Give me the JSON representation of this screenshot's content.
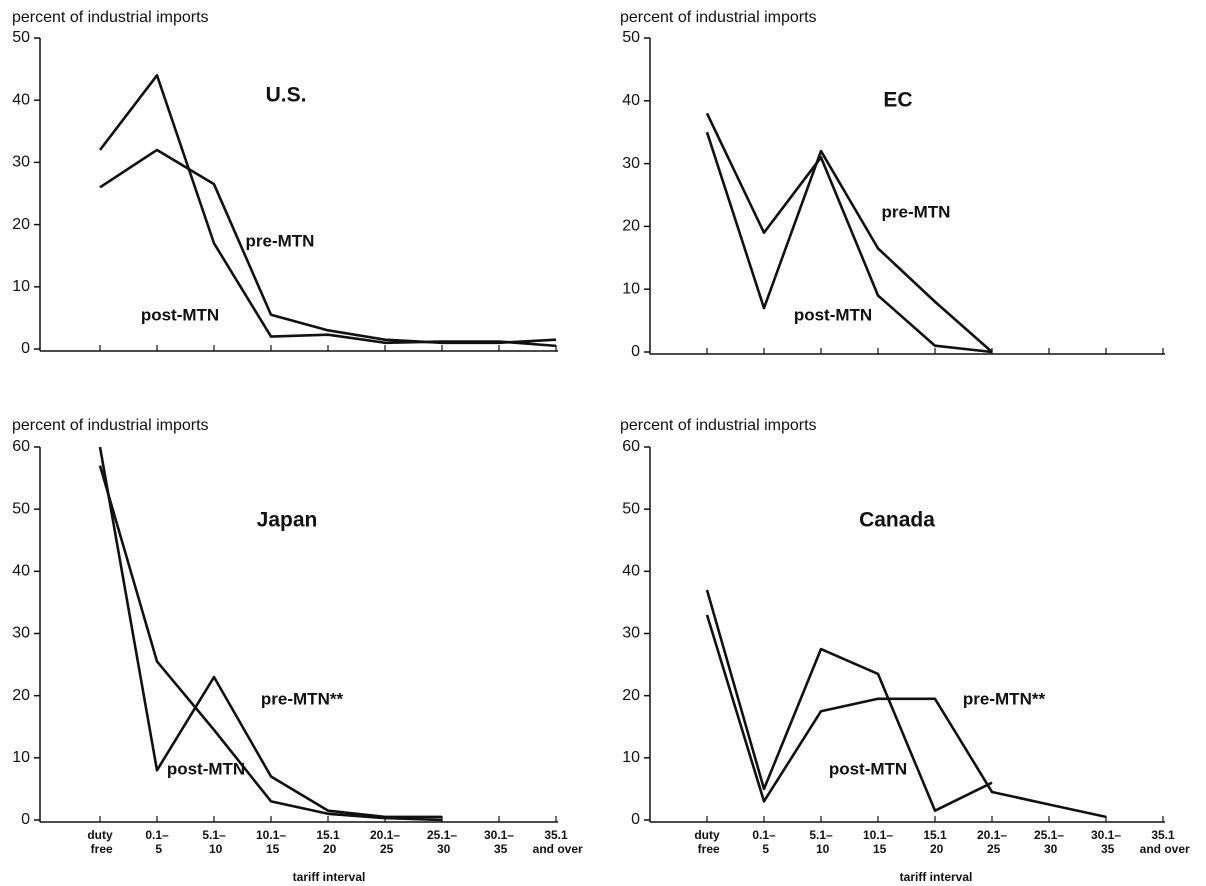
{
  "chart_data": [
    {
      "type": "line",
      "title": "U.S.",
      "y_label": "percent of industrial imports",
      "categories": [
        null,
        null,
        null,
        null,
        null,
        null,
        null,
        null,
        null
      ],
      "series": [
        {
          "name": "pre-MTN",
          "color": "#111111",
          "values": [
            26,
            32,
            26.5,
            5.5,
            3,
            1.5,
            1,
            1,
            1.5
          ]
        },
        {
          "name": "post-MTN",
          "color": "#111111",
          "values": [
            32,
            44,
            17,
            2,
            2.3,
            1,
            1.2,
            1.2,
            0.5
          ]
        }
      ],
      "ylim": [
        0,
        50
      ],
      "yticks": [
        0,
        10,
        20,
        30,
        40,
        50
      ]
    },
    {
      "type": "line",
      "title": "EC",
      "y_label": "percent of industrial imports",
      "categories": [
        null,
        null,
        null,
        null,
        null,
        null,
        null,
        null,
        null
      ],
      "series": [
        {
          "name": "pre-MTN",
          "color": "#111111",
          "values": [
            35,
            7,
            32,
            16.5,
            8,
            0,
            null,
            null,
            null
          ]
        },
        {
          "name": "post-MTN",
          "color": "#111111",
          "values": [
            38,
            19,
            31,
            9,
            1,
            0,
            null,
            null,
            null
          ]
        }
      ],
      "ylim": [
        0,
        50
      ],
      "yticks": [
        0,
        10,
        20,
        30,
        40,
        50
      ]
    },
    {
      "type": "line",
      "title": "Japan",
      "y_label": "percent of industrial imports",
      "x_label": "tariff interval",
      "categories": [
        "duty free",
        "0.1– 5",
        "5.1– 10",
        "10.1– 15",
        "15.1 20",
        "20.1– 25",
        "25.1– 30",
        "30.1– 35",
        "35.1 and over"
      ],
      "series": [
        {
          "name": "pre-MTN**",
          "color": "#111111",
          "values": [
            60,
            8,
            23,
            7,
            1.5,
            0.5,
            0.5,
            null,
            null
          ]
        },
        {
          "name": "post-MTN",
          "color": "#111111",
          "values": [
            57,
            25.5,
            14.5,
            3,
            1,
            0.3,
            0,
            null,
            null
          ]
        }
      ],
      "ylim": [
        0,
        60
      ],
      "yticks": [
        0,
        10,
        20,
        30,
        40,
        50,
        60
      ]
    },
    {
      "type": "line",
      "title": "Canada",
      "y_label": "percent of industrial imports",
      "x_label": "tariff interval",
      "categories": [
        "duty free",
        "0.1– 5",
        "5.1– 10",
        "10.1– 15",
        "15.1 20",
        "20.1– 25",
        "25.1– 30",
        "30.1– 35",
        "35.1 and over"
      ],
      "series": [
        {
          "name": "pre-MTN**",
          "color": "#111111",
          "values": [
            33,
            3,
            17.5,
            19.5,
            19.5,
            4.5,
            2.5,
            0.5,
            null
          ]
        },
        {
          "name": "post-MTN",
          "color": "#111111",
          "values": [
            37,
            5,
            27.5,
            23.5,
            1.5,
            6,
            null,
            null,
            null
          ]
        }
      ],
      "ylim": [
        0,
        60
      ],
      "yticks": [
        0,
        10,
        20,
        30,
        40,
        50,
        60
      ]
    }
  ]
}
